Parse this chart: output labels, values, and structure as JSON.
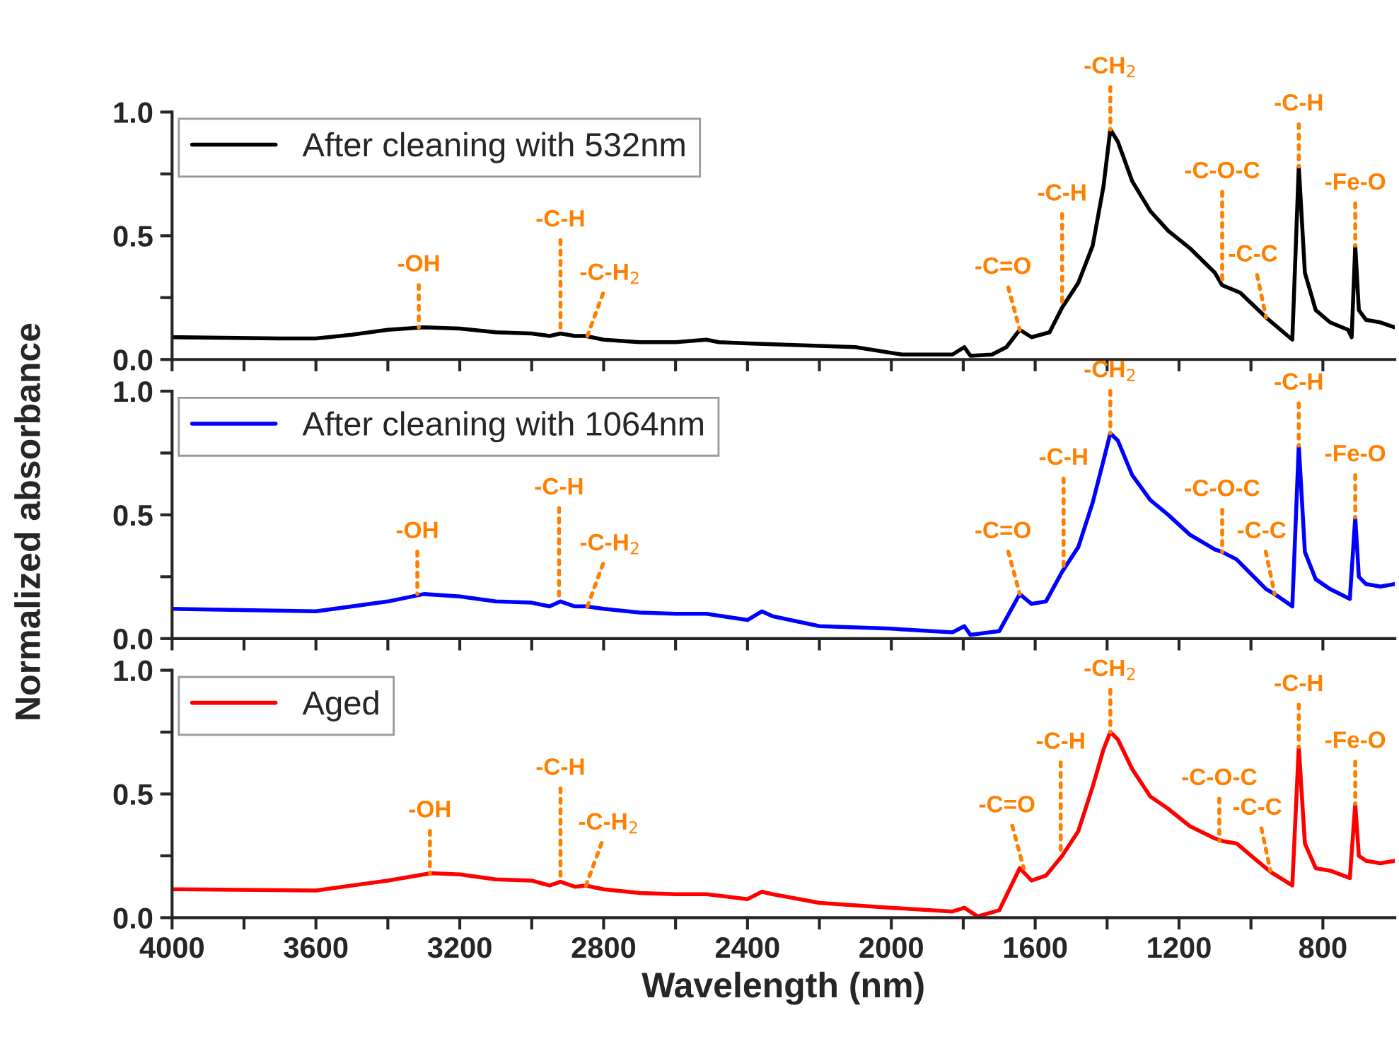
{
  "chart_data": [
    {
      "type": "line",
      "legend": "top left",
      "grid": false,
      "tick_labels": "y",
      "x": [
        4000,
        3700,
        3600,
        3500,
        3400,
        3300,
        3200,
        3100,
        3000,
        2950,
        2920,
        2880,
        2850,
        2800,
        2700,
        2600,
        2514,
        2480,
        2400,
        2200,
        2100,
        1970,
        1830,
        1797,
        1780,
        1720,
        1680,
        1643,
        1610,
        1560,
        1525,
        1480,
        1440,
        1410,
        1391,
        1370,
        1330,
        1280,
        1230,
        1170,
        1100,
        1080,
        1030,
        958,
        885,
        867,
        850,
        820,
        780,
        730,
        720,
        710,
        700,
        680,
        640,
        600
      ],
      "series": [
        {
          "name": "After cleaning with 532nm",
          "color": "#000000",
          "values": [
            0.09,
            0.085,
            0.085,
            0.1,
            0.12,
            0.13,
            0.125,
            0.11,
            0.105,
            0.095,
            0.105,
            0.095,
            0.095,
            0.08,
            0.07,
            0.07,
            0.08,
            0.07,
            0.065,
            0.055,
            0.05,
            0.02,
            0.02,
            0.05,
            0.015,
            0.02,
            0.05,
            0.12,
            0.09,
            0.11,
            0.21,
            0.31,
            0.46,
            0.7,
            0.93,
            0.88,
            0.72,
            0.6,
            0.52,
            0.45,
            0.35,
            0.3,
            0.27,
            0.17,
            0.08,
            0.78,
            0.35,
            0.2,
            0.15,
            0.12,
            0.09,
            0.46,
            0.2,
            0.16,
            0.15,
            0.13
          ]
        }
      ],
      "xlim": [
        4000,
        600
      ],
      "xticks": [
        4000,
        {
          "value": 3800,
          "label": null
        },
        3600,
        {
          "value": 3400,
          "label": null
        },
        3200,
        {
          "value": 3000,
          "label": null
        },
        2800,
        {
          "value": 2600,
          "label": null
        },
        2400,
        {
          "value": 2200,
          "label": null
        },
        2000,
        {
          "value": 1800,
          "label": null
        },
        1600,
        {
          "value": 1400,
          "label": null
        },
        1200,
        {
          "value": 1000,
          "label": null
        },
        800
      ],
      "ylim": [
        0,
        1.0
      ],
      "yticks": [
        {
          "value": 0,
          "label": "0.0"
        },
        {
          "value": 0.25,
          "label": null
        },
        {
          "value": 0.5,
          "label": "0.5"
        },
        {
          "value": 0.75,
          "label": null
        },
        {
          "value": 1.0,
          "label": "1.0"
        }
      ],
      "annotations": [
        {
          "text": "-OH",
          "x": 3314,
          "y": 0.13
        },
        {
          "text": "-C-H",
          "x": 2920,
          "y": 0.105
        },
        {
          "text": "-C-H$_{2}$",
          "x": 2845,
          "y": 0.095
        },
        {
          "text": "-C=O",
          "x": 1643,
          "y": 0.12
        },
        {
          "text": "-C-H",
          "x": 1525,
          "y": 0.21
        },
        {
          "text": "-CH$_{2}$",
          "x": 1391,
          "y": 0.93
        },
        {
          "text": "-C-O-C",
          "x": 1080,
          "y": 0.3
        },
        {
          "text": "-C-C",
          "x": 958,
          "y": 0.17
        },
        {
          "text": "-C-H",
          "x": 867,
          "y": 0.78
        },
        {
          "text": "-Fe-O",
          "x": 710,
          "y": 0.46
        }
      ]
    },
    {
      "type": "line",
      "legend": "top left",
      "grid": false,
      "tick_labels": "y",
      "ylabel": "Normalized absorbance",
      "x": [
        4000,
        3600,
        3400,
        3300,
        3200,
        3100,
        3000,
        2950,
        2920,
        2880,
        2850,
        2800,
        2700,
        2600,
        2514,
        2400,
        2360,
        2330,
        2200,
        2000,
        1830,
        1797,
        1780,
        1700,
        1643,
        1610,
        1570,
        1525,
        1480,
        1440,
        1410,
        1391,
        1370,
        1330,
        1280,
        1230,
        1170,
        1100,
        1080,
        1040,
        958,
        934,
        885,
        867,
        850,
        820,
        780,
        725,
        710,
        700,
        680,
        640,
        600
      ],
      "series": [
        {
          "name": "After cleaning with 1064nm",
          "color": "#0000ff",
          "values": [
            0.12,
            0.11,
            0.15,
            0.18,
            0.17,
            0.15,
            0.145,
            0.13,
            0.15,
            0.13,
            0.13,
            0.12,
            0.105,
            0.1,
            0.1,
            0.075,
            0.11,
            0.09,
            0.05,
            0.04,
            0.025,
            0.05,
            0.015,
            0.03,
            0.18,
            0.14,
            0.15,
            0.27,
            0.37,
            0.55,
            0.72,
            0.83,
            0.8,
            0.66,
            0.56,
            0.5,
            0.42,
            0.36,
            0.35,
            0.32,
            0.2,
            0.18,
            0.13,
            0.78,
            0.35,
            0.24,
            0.2,
            0.16,
            0.49,
            0.25,
            0.22,
            0.21,
            0.22
          ]
        }
      ],
      "xlim": [
        4000,
        600
      ],
      "xticks": [
        4000,
        {
          "value": 3800,
          "label": null
        },
        3600,
        {
          "value": 3400,
          "label": null
        },
        3200,
        {
          "value": 3000,
          "label": null
        },
        2800,
        {
          "value": 2600,
          "label": null
        },
        2400,
        {
          "value": 2200,
          "label": null
        },
        2000,
        {
          "value": 1800,
          "label": null
        },
        1600,
        {
          "value": 1400,
          "label": null
        },
        1200,
        {
          "value": 1000,
          "label": null
        },
        800
      ],
      "ylim": [
        0,
        1.0
      ],
      "yticks": [
        {
          "value": 0,
          "label": "0.0"
        },
        {
          "value": 0.25,
          "label": null
        },
        {
          "value": 0.5,
          "label": "0.5"
        },
        {
          "value": 0.75,
          "label": null
        },
        {
          "value": 1.0,
          "label": "1.0"
        }
      ],
      "annotations": [
        {
          "text": "-OH",
          "x": 3318,
          "y": 0.18
        },
        {
          "text": "-C-H",
          "x": 2924,
          "y": 0.15
        },
        {
          "text": "-C-H$_{2}$",
          "x": 2845,
          "y": 0.13
        },
        {
          "text": "-C=O",
          "x": 1643,
          "y": 0.18
        },
        {
          "text": "-C-H",
          "x": 1521,
          "y": 0.27
        },
        {
          "text": "-CH$_{2}$",
          "x": 1391,
          "y": 0.83
        },
        {
          "text": "-C-O-C",
          "x": 1080,
          "y": 0.35
        },
        {
          "text": "-C-C",
          "x": 934,
          "y": 0.18
        },
        {
          "text": "-C-H",
          "x": 867,
          "y": 0.78
        },
        {
          "text": "-Fe-O",
          "x": 710,
          "y": 0.49
        }
      ]
    },
    {
      "type": "line",
      "legend": "top left",
      "grid": false,
      "xlabel": "Wavelength (nm)",
      "x": [
        4000,
        3600,
        3400,
        3280,
        3200,
        3100,
        3000,
        2950,
        2920,
        2880,
        2850,
        2800,
        2700,
        2600,
        2514,
        2400,
        2360,
        2330,
        2200,
        2000,
        1830,
        1797,
        1760,
        1700,
        1643,
        1610,
        1570,
        1525,
        1480,
        1440,
        1410,
        1391,
        1370,
        1330,
        1280,
        1230,
        1170,
        1100,
        1080,
        1040,
        958,
        940,
        885,
        867,
        850,
        820,
        780,
        725,
        710,
        700,
        680,
        640,
        600
      ],
      "series": [
        {
          "name": "Aged",
          "color": "#ff0000",
          "values": [
            0.115,
            0.11,
            0.15,
            0.18,
            0.175,
            0.155,
            0.15,
            0.13,
            0.145,
            0.125,
            0.13,
            0.115,
            0.1,
            0.095,
            0.095,
            0.075,
            0.105,
            0.095,
            0.06,
            0.04,
            0.025,
            0.04,
            0.005,
            0.03,
            0.2,
            0.15,
            0.17,
            0.25,
            0.35,
            0.53,
            0.68,
            0.75,
            0.72,
            0.6,
            0.49,
            0.44,
            0.37,
            0.32,
            0.31,
            0.3,
            0.2,
            0.18,
            0.13,
            0.69,
            0.3,
            0.2,
            0.19,
            0.16,
            0.46,
            0.25,
            0.23,
            0.22,
            0.23
          ]
        }
      ],
      "xlim": [
        4000,
        600
      ],
      "xticks": [
        4000,
        {
          "value": 3800,
          "label": null
        },
        3600,
        {
          "value": 3400,
          "label": null
        },
        3200,
        {
          "value": 3000,
          "label": null
        },
        2800,
        {
          "value": 2600,
          "label": null
        },
        2400,
        {
          "value": 2200,
          "label": null
        },
        2000,
        {
          "value": 1800,
          "label": null
        },
        1600,
        {
          "value": 1400,
          "label": null
        },
        1200,
        {
          "value": 1000,
          "label": null
        },
        800
      ],
      "ylim": [
        0,
        1.0
      ],
      "yticks": [
        {
          "value": 0,
          "label": "0.0"
        },
        {
          "value": 0.25,
          "label": null
        },
        {
          "value": 0.5,
          "label": "0.5"
        },
        {
          "value": 0.75,
          "label": null
        },
        {
          "value": 1.0,
          "label": "1.0"
        }
      ],
      "annotations": [
        {
          "text": "-OH",
          "x": 3283,
          "y": 0.18
        },
        {
          "text": "-C-H",
          "x": 2920,
          "y": 0.145
        },
        {
          "text": "-C-H$_{2}$",
          "x": 2849,
          "y": 0.13
        },
        {
          "text": "-C=O",
          "x": 1632,
          "y": 0.2
        },
        {
          "text": "-C-H",
          "x": 1529,
          "y": 0.25
        },
        {
          "text": "-CH$_{2}$",
          "x": 1391,
          "y": 0.75
        },
        {
          "text": "-C-O-C",
          "x": 1088,
          "y": 0.31
        },
        {
          "text": "-C-C",
          "x": 946,
          "y": 0.19
        },
        {
          "text": "-C-H",
          "x": 867,
          "y": 0.69
        },
        {
          "text": "-Fe-O",
          "x": 710,
          "y": 0.46
        }
      ]
    }
  ]
}
